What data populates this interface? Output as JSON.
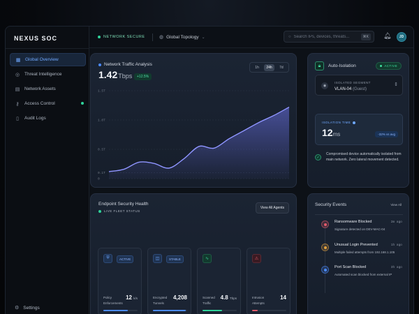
{
  "sidebar": {
    "brand": "NEXUS SOC",
    "items": [
      {
        "label": "Global Overview",
        "icon": "grid-icon"
      },
      {
        "label": "Threat Intelligence",
        "icon": "radar-icon"
      },
      {
        "label": "Network Assets",
        "icon": "server-icon"
      },
      {
        "label": "Access Control",
        "icon": "key-icon"
      },
      {
        "label": "Audit Logs",
        "icon": "document-icon"
      }
    ],
    "settings_label": "Settings"
  },
  "topbar": {
    "status": "NETWORK SECURE",
    "topology": "Global Topology",
    "search_placeholder": "Search IPs, devices, threats...",
    "search_shortcut": "⌘K",
    "avatar_initials": "JD"
  },
  "traffic": {
    "title": "Network Traffic Analysis",
    "value": "1.42",
    "unit": "Tbps",
    "delta": "+12.5%",
    "ranges": [
      "1h",
      "24h",
      "7d"
    ],
    "selected_range": "24h",
    "accent": "#6b72e8"
  },
  "chart_data": {
    "type": "area",
    "y_ticks": [
      "1.5T",
      "1.0T",
      "0.5T",
      "0.1T",
      "0"
    ],
    "x": [
      0,
      1,
      2,
      3,
      4,
      5,
      6,
      7,
      8,
      9,
      10,
      11,
      12
    ],
    "values": [
      0.12,
      0.16,
      0.28,
      0.26,
      0.18,
      0.34,
      0.55,
      0.52,
      0.68,
      0.82,
      0.96,
      1.08,
      1.22
    ],
    "ylim": [
      0,
      1.5
    ],
    "grid": true
  },
  "isolation": {
    "title": "Auto-Isolation",
    "status": "ACTIVE",
    "segment_label": "ISOLATED SEGMENT",
    "segment_value": "VLAN-04",
    "segment_guest": "(Guest)",
    "time_label": "ISOLATION TIME",
    "time_value": "12",
    "time_unit": "ms",
    "time_delta": "-32% vs avg",
    "note": "Compromised device automatically isolated from main network. Zero lateral movement detected."
  },
  "endpoint": {
    "title": "Endpoint Security Health",
    "subtitle": "LIVE FLEET STATUS",
    "view_all": "View All Agents",
    "tiles": [
      {
        "badge": "ACTIVE",
        "icon": "shield-icon",
        "label1": "Policy",
        "label2": "Enforcements",
        "value": "12",
        "unit": "k/s",
        "accent": "#4b8bff",
        "progress": 0.72
      },
      {
        "badge": "STABLE",
        "icon": "database-icon",
        "label1": "Encrypted",
        "label2": "Tunnels",
        "value": "4,208",
        "unit": "",
        "accent": "#4b8bff",
        "progress": 0.96
      },
      {
        "badge": "",
        "icon": "activity-icon",
        "label1": "Scanned",
        "label2": "Traffic",
        "value": "4.8",
        "unit": "Tbps",
        "accent": "#2fd39a",
        "progress": 0.58
      },
      {
        "badge": "",
        "icon": "alert-icon",
        "label1": "Intrusion",
        "label2": "Attempts",
        "value": "14",
        "unit": "",
        "accent": "#e05a6a",
        "progress": 0.16
      }
    ]
  },
  "events": {
    "title": "Security Events",
    "view_all": "View All",
    "items": [
      {
        "name": "Ransomware Blocked",
        "time": "2m ago",
        "desc": "Signature detected on DEV-MAC-04",
        "color": "#e05a6a"
      },
      {
        "name": "Unusual Login Prevented",
        "time": "1h ago",
        "desc": "Multiple failed attempts from 192.168.1.105",
        "color": "#e0a040"
      },
      {
        "name": "Port Scan Blocked",
        "time": "3h ago",
        "desc": "Automated scan blocked from external IP",
        "color": "#4b8bff"
      }
    ]
  }
}
